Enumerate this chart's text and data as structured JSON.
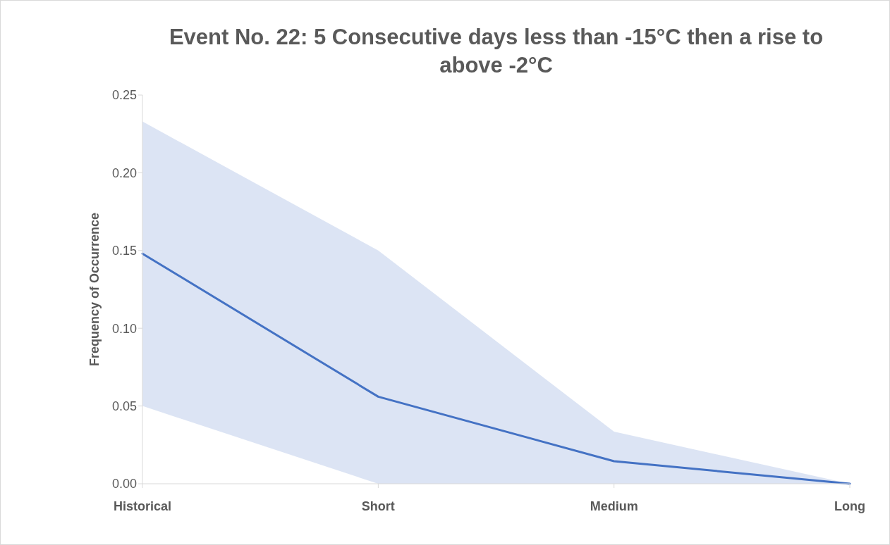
{
  "chart_data": {
    "type": "line",
    "title": "Event No. 22: 5 Consecutive days less than -15°C then a rise to above -2°C",
    "ylabel": "Frequency of Occurrence",
    "categories": [
      "Historical",
      "Short",
      "Medium",
      "Long"
    ],
    "series": [
      {
        "color": "#4472c4",
        "values": [
          0.148,
          0.056,
          0.0145,
          0
        ],
        "lower": [
          0.05,
          0,
          0,
          0
        ],
        "upper": [
          0.233,
          0.15,
          0.0335,
          0
        ]
      }
    ],
    "ylim": [
      0,
      0.25
    ],
    "yticks": [
      {
        "value": 0,
        "label": "0.00"
      },
      {
        "value": 0.05,
        "label": "0.05"
      },
      {
        "value": 0.1,
        "label": "0.10"
      },
      {
        "value": 0.15,
        "label": "0.15"
      },
      {
        "value": 0.2,
        "label": "0.20"
      },
      {
        "value": 0.25,
        "label": "0.25"
      }
    ],
    "grid": false,
    "line_style": "solid",
    "marker": "none"
  }
}
